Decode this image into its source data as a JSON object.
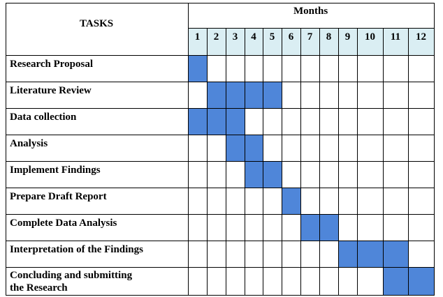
{
  "header": {
    "tasks_label": "TASKS",
    "months_label": "Months"
  },
  "months": [
    "1",
    "2",
    "3",
    "4",
    "5",
    "6",
    "7",
    "8",
    "9",
    "10",
    "11",
    "12"
  ],
  "tasks": [
    {
      "name": "Research Proposal",
      "months": [
        1
      ]
    },
    {
      "name": "Literature Review",
      "months": [
        2,
        3,
        4,
        5
      ]
    },
    {
      "name": "Data collection",
      "months": [
        1,
        2,
        3
      ]
    },
    {
      "name": "Analysis",
      "months": [
        3,
        4
      ]
    },
    {
      "name": "Implement Findings",
      "months": [
        4,
        5
      ]
    },
    {
      "name": "Prepare Draft Report",
      "months": [
        6
      ]
    },
    {
      "name": "Complete Data Analysis",
      "months": [
        7,
        8
      ]
    },
    {
      "name": "Interpretation of the Findings",
      "months": [
        9,
        10,
        11
      ]
    },
    {
      "name": "Concluding and submitting\nthe Research",
      "months": [
        11,
        12
      ]
    }
  ],
  "colors": {
    "bar": "#4f86d9",
    "month_header_bg": "#daeef3",
    "grid": "#000000"
  }
}
